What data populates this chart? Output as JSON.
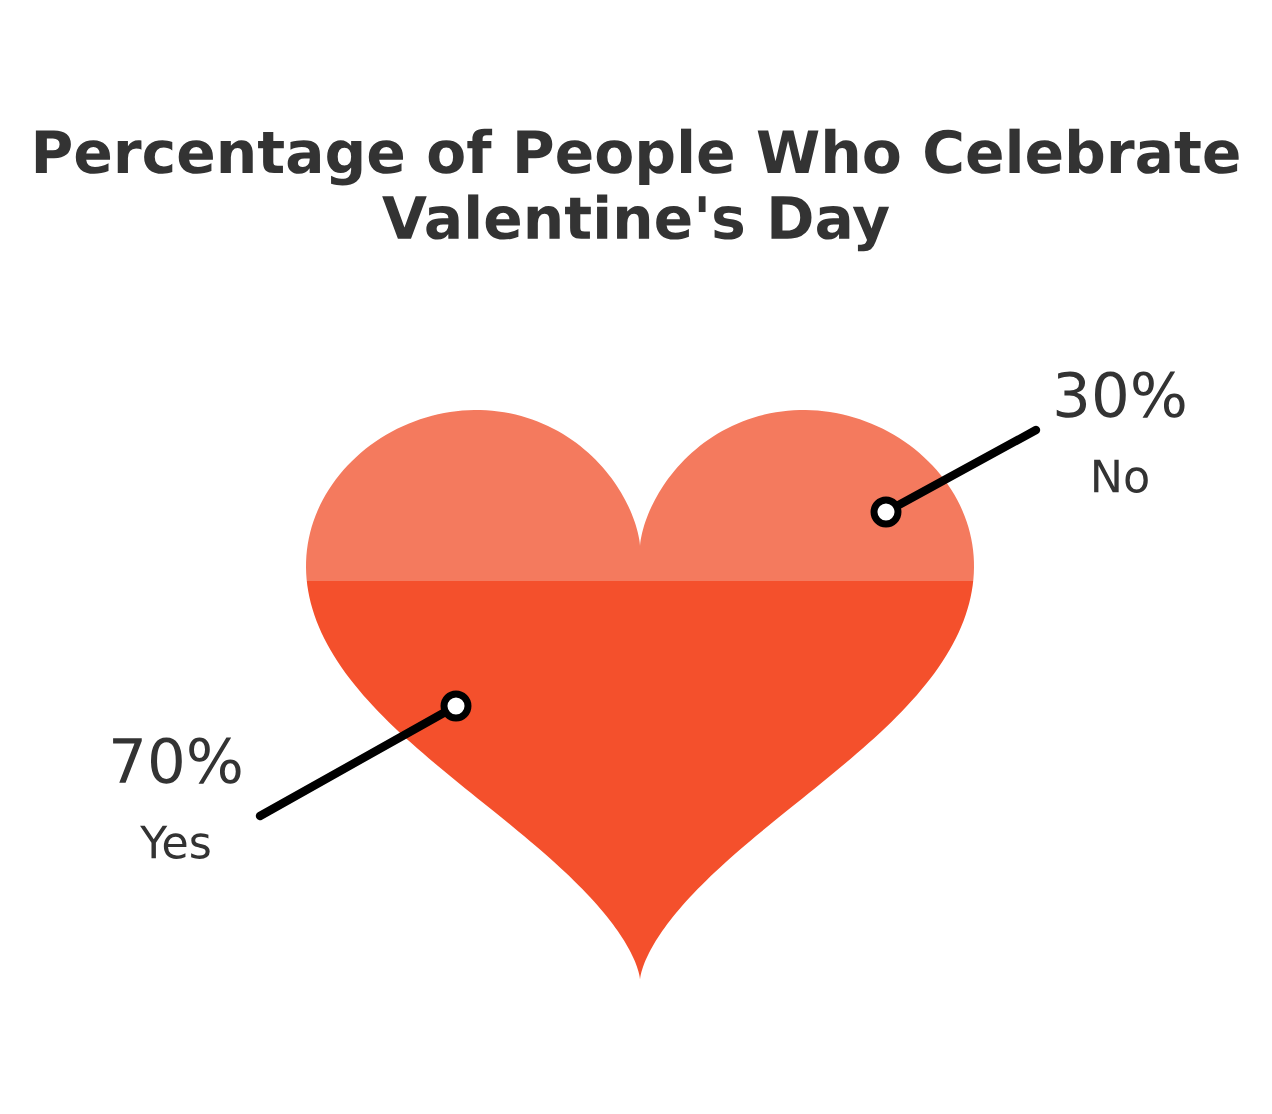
{
  "chart_data": {
    "type": "other",
    "title": "Percentage of People Who Celebrate Valentine's Day",
    "categories": [
      "Yes",
      "No"
    ],
    "values": [
      70,
      30
    ],
    "value_labels": [
      "70%",
      "30%"
    ],
    "colors": [
      "#f4502c",
      "#f47a5e"
    ]
  }
}
